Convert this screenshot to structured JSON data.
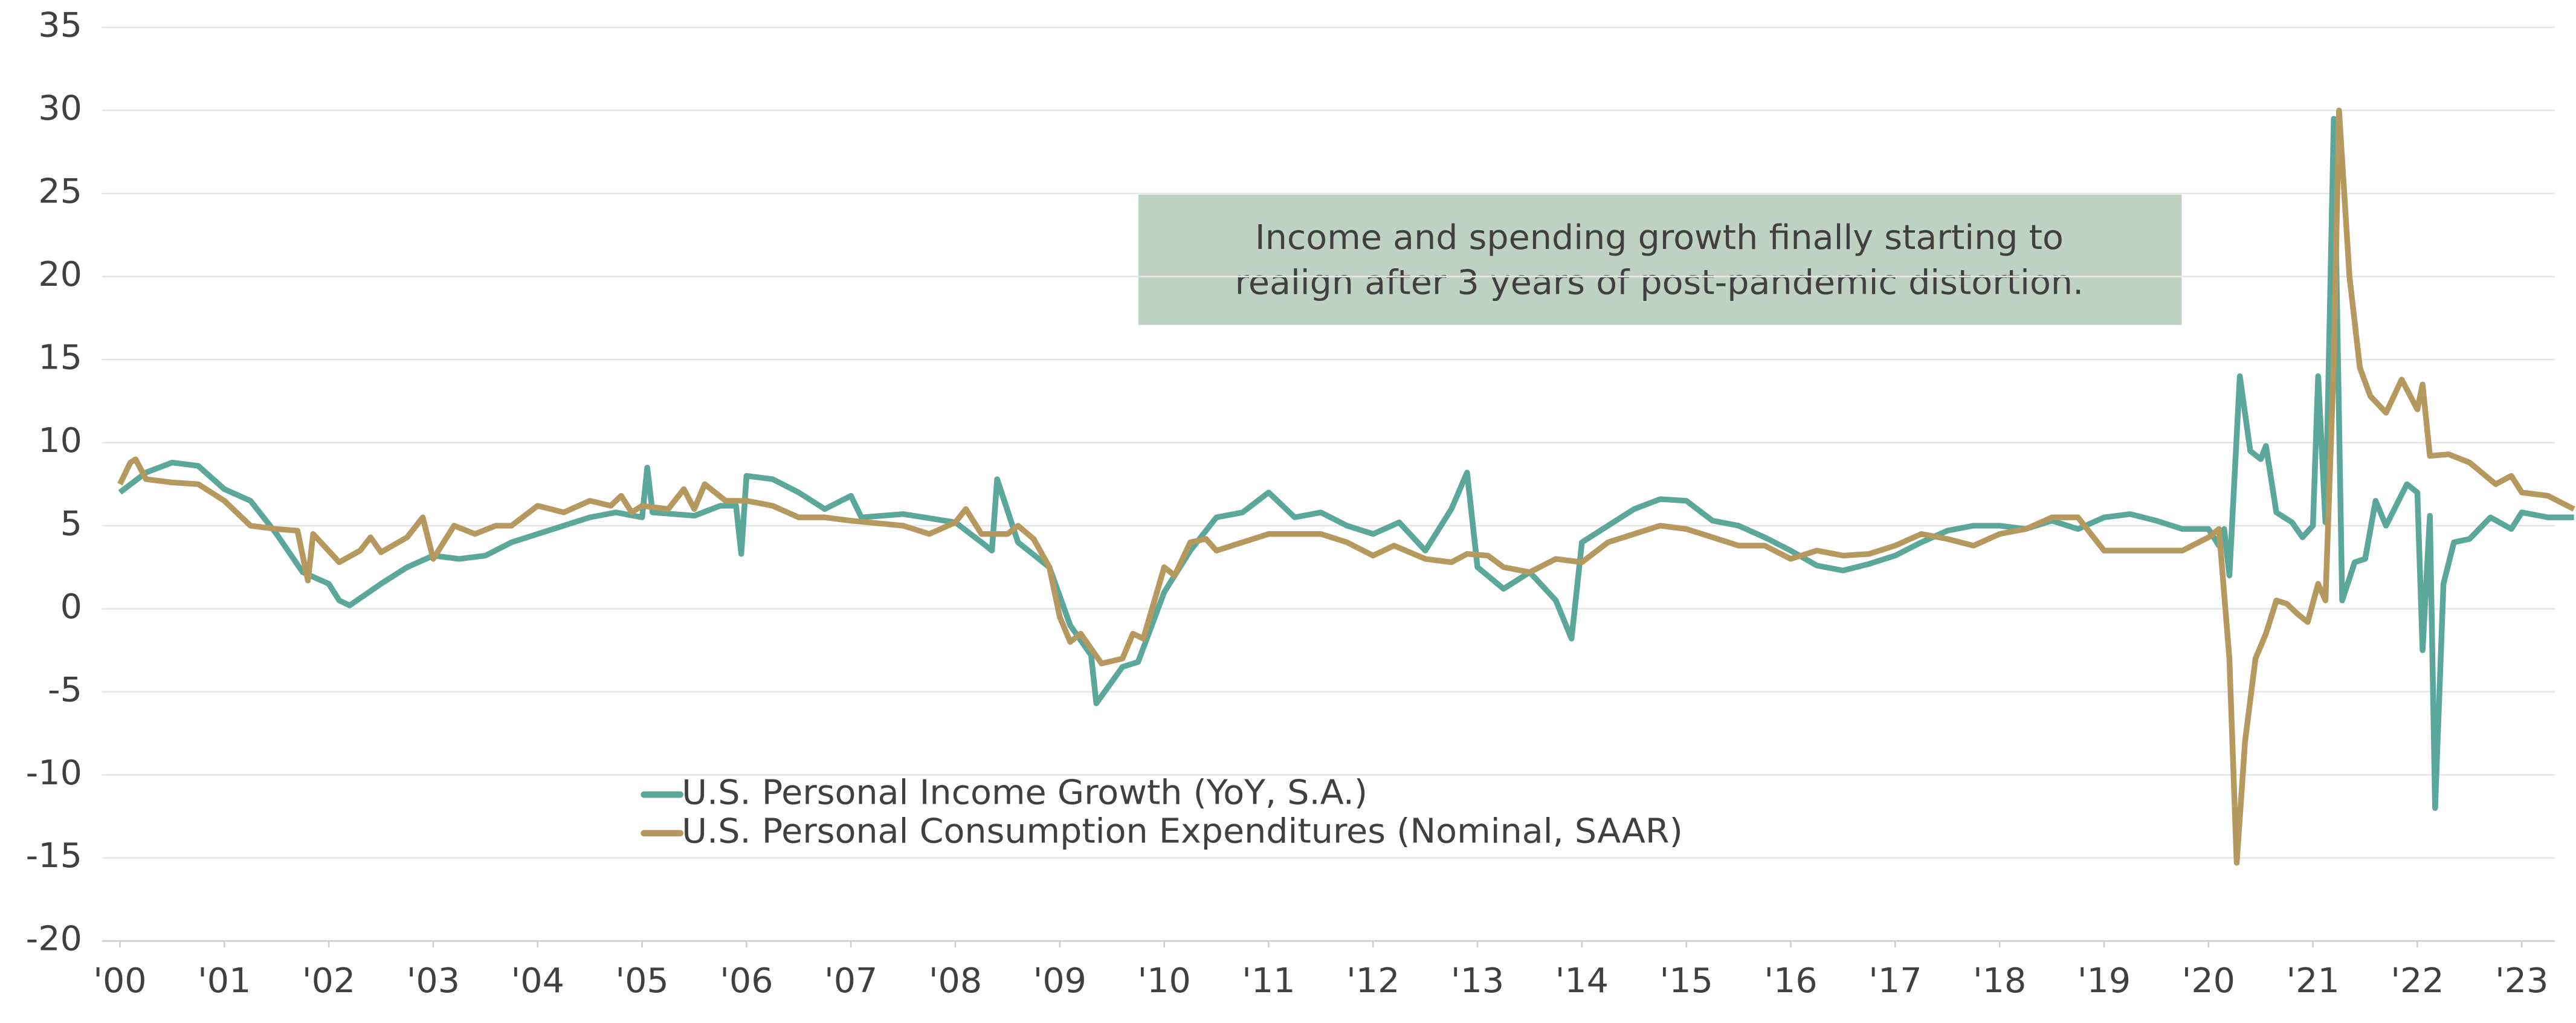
{
  "chart_data": {
    "type": "line",
    "annotation": [
      "Income and spending growth finally starting to",
      "realign after 3 years of post-pandemic distortion."
    ],
    "xlim": [
      2000,
      2023.5
    ],
    "xticks": [
      {
        "value": 2000,
        "label": "'00"
      },
      {
        "value": 2001,
        "label": "'01"
      },
      {
        "value": 2002,
        "label": "'02"
      },
      {
        "value": 2003,
        "label": "'03"
      },
      {
        "value": 2004,
        "label": "'04"
      },
      {
        "value": 2005,
        "label": "'05"
      },
      {
        "value": 2006,
        "label": "'06"
      },
      {
        "value": 2007,
        "label": "'07"
      },
      {
        "value": 2008,
        "label": "'08"
      },
      {
        "value": 2009,
        "label": "'09"
      },
      {
        "value": 2010,
        "label": "'10"
      },
      {
        "value": 2011,
        "label": "'11"
      },
      {
        "value": 2012,
        "label": "'12"
      },
      {
        "value": 2013,
        "label": "'13"
      },
      {
        "value": 2014,
        "label": "'14"
      },
      {
        "value": 2015,
        "label": "'15"
      },
      {
        "value": 2016,
        "label": "'16"
      },
      {
        "value": 2017,
        "label": "'17"
      },
      {
        "value": 2018,
        "label": "'18"
      },
      {
        "value": 2019,
        "label": "'19"
      },
      {
        "value": 2020,
        "label": "'20"
      },
      {
        "value": 2021,
        "label": "'21"
      },
      {
        "value": 2022,
        "label": "'22"
      },
      {
        "value": 2023,
        "label": "'23"
      }
    ],
    "ylim": [
      -20,
      35
    ],
    "yticks": [
      -20,
      -15,
      -10,
      -5,
      0,
      5,
      10,
      15,
      20,
      25,
      30,
      35
    ],
    "grid": true,
    "series": [
      {
        "name": "U.S. Personal Income Growth (YoY, S.A.)",
        "color": "#5ba89b",
        "x": [
          2000.0,
          2000.25,
          2000.5,
          2000.75,
          2001.0,
          2001.25,
          2001.5,
          2001.75,
          2002.0,
          2002.1,
          2002.2,
          2002.5,
          2002.75,
          2003.0,
          2003.25,
          2003.5,
          2003.75,
          2004.0,
          2004.25,
          2004.5,
          2004.75,
          2005.0,
          2005.05,
          2005.1,
          2005.5,
          2005.75,
          2005.9,
          2005.95,
          2006.0,
          2006.25,
          2006.5,
          2006.75,
          2007.0,
          2007.1,
          2007.5,
          2008.0,
          2008.25,
          2008.35,
          2008.4,
          2008.6,
          2008.9,
          2009.1,
          2009.3,
          2009.35,
          2009.6,
          2009.75,
          2010.0,
          2010.25,
          2010.5,
          2010.75,
          2011.0,
          2011.25,
          2011.5,
          2011.75,
          2012.0,
          2012.25,
          2012.5,
          2012.75,
          2012.9,
          2013.0,
          2013.25,
          2013.5,
          2013.75,
          2013.9,
          2014.0,
          2014.25,
          2014.5,
          2014.75,
          2015.0,
          2015.25,
          2015.5,
          2015.75,
          2016.0,
          2016.25,
          2016.5,
          2016.75,
          2017.0,
          2017.25,
          2017.5,
          2017.75,
          2018.0,
          2018.25,
          2018.5,
          2018.75,
          2019.0,
          2019.25,
          2019.5,
          2019.75,
          2020.0,
          2020.1,
          2020.15,
          2020.2,
          2020.3,
          2020.4,
          2020.5,
          2020.55,
          2020.65,
          2020.8,
          2020.9,
          2021.0,
          2021.05,
          2021.12,
          2021.2,
          2021.28,
          2021.4,
          2021.5,
          2021.6,
          2021.7,
          2021.9,
          2022.0,
          2022.05,
          2022.12,
          2022.17,
          2022.25,
          2022.35,
          2022.5,
          2022.7,
          2022.9,
          2023.0,
          2023.25,
          2023.5
        ],
        "values": [
          7,
          8.2,
          8.8,
          8.6,
          7.2,
          6.5,
          4.5,
          2.2,
          1.5,
          0.5,
          0.2,
          1.5,
          2.5,
          3.2,
          3,
          3.2,
          4,
          4.5,
          5,
          5.5,
          5.8,
          5.5,
          8.5,
          5.8,
          5.6,
          6.2,
          6.2,
          3.3,
          8,
          7.8,
          7,
          6,
          6.8,
          5.5,
          5.7,
          5.2,
          4,
          3.5,
          7.8,
          4,
          2.5,
          -1,
          -2.8,
          -5.7,
          -3.5,
          -3.2,
          1,
          3.5,
          5.5,
          5.8,
          7,
          5.5,
          5.8,
          5,
          4.5,
          5.2,
          3.5,
          6,
          8.2,
          2.5,
          1.2,
          2.2,
          0.5,
          -1.8,
          4,
          5,
          6,
          6.6,
          6.5,
          5.3,
          5,
          4.3,
          3.5,
          2.6,
          2.3,
          2.7,
          3.2,
          4,
          4.7,
          5,
          5,
          4.8,
          5.3,
          4.8,
          5.5,
          5.7,
          5.3,
          4.8,
          4.8,
          3.8,
          4.8,
          2,
          14,
          9.5,
          9,
          9.8,
          5.8,
          5.2,
          4.3,
          5,
          14,
          5.2,
          29.5,
          0.5,
          2.8,
          3,
          6.5,
          5,
          7.5,
          7,
          -2.5,
          5.6,
          -12,
          1.5,
          4,
          4.2,
          5.5,
          4.8,
          5.8,
          5.5,
          5.5
        ]
      },
      {
        "name": "U.S. Personal Consumption Expenditures (Nominal, SAAR)",
        "color": "#b5995e",
        "x": [
          2000.0,
          2000.1,
          2000.15,
          2000.25,
          2000.5,
          2000.75,
          2001.0,
          2001.25,
          2001.5,
          2001.7,
          2001.8,
          2001.85,
          2002.1,
          2002.3,
          2002.4,
          2002.5,
          2002.75,
          2002.9,
          2003.0,
          2003.2,
          2003.4,
          2003.6,
          2003.75,
          2004.0,
          2004.25,
          2004.5,
          2004.7,
          2004.8,
          2004.9,
          2005.0,
          2005.25,
          2005.4,
          2005.5,
          2005.6,
          2005.8,
          2006.0,
          2006.25,
          2006.5,
          2006.75,
          2007.0,
          2007.5,
          2007.75,
          2008.0,
          2008.1,
          2008.25,
          2008.5,
          2008.6,
          2008.75,
          2008.9,
          2009.0,
          2009.1,
          2009.2,
          2009.4,
          2009.6,
          2009.7,
          2009.8,
          2010.0,
          2010.1,
          2010.25,
          2010.4,
          2010.5,
          2010.75,
          2011.0,
          2011.25,
          2011.5,
          2011.75,
          2012.0,
          2012.2,
          2012.5,
          2012.75,
          2012.9,
          2013.1,
          2013.25,
          2013.5,
          2013.75,
          2014.0,
          2014.25,
          2014.5,
          2014.75,
          2015.0,
          2015.25,
          2015.5,
          2015.75,
          2016.0,
          2016.25,
          2016.5,
          2016.75,
          2017.0,
          2017.25,
          2017.5,
          2017.75,
          2018.0,
          2018.25,
          2018.5,
          2018.75,
          2019.0,
          2019.25,
          2019.5,
          2019.75,
          2020.0,
          2020.1,
          2020.2,
          2020.27,
          2020.35,
          2020.45,
          2020.55,
          2020.65,
          2020.75,
          2020.85,
          2020.95,
          2021.05,
          2021.12,
          2021.2,
          2021.25,
          2021.35,
          2021.45,
          2021.55,
          2021.7,
          2021.85,
          2022.0,
          2022.05,
          2022.12,
          2022.3,
          2022.5,
          2022.75,
          2022.9,
          2023.0,
          2023.25,
          2023.5
        ],
        "values": [
          7.5,
          8.8,
          9,
          7.8,
          7.6,
          7.5,
          6.5,
          5,
          4.8,
          4.7,
          1.7,
          4.5,
          2.8,
          3.5,
          4.3,
          3.4,
          4.3,
          5.5,
          3,
          5,
          4.5,
          5,
          5,
          6.2,
          5.8,
          6.5,
          6.2,
          6.8,
          5.8,
          6.2,
          6,
          7.2,
          6,
          7.5,
          6.5,
          6.5,
          6.2,
          5.5,
          5.5,
          5.3,
          5,
          4.5,
          5.2,
          6,
          4.5,
          4.5,
          5,
          4.2,
          2.5,
          -0.5,
          -2,
          -1.5,
          -3.3,
          -3,
          -1.5,
          -1.8,
          2.5,
          2,
          4,
          4.2,
          3.5,
          4,
          4.5,
          4.5,
          4.5,
          4,
          3.2,
          3.8,
          3,
          2.8,
          3.3,
          3.2,
          2.5,
          2.2,
          3,
          2.8,
          4,
          4.5,
          5,
          4.8,
          4.3,
          3.8,
          3.8,
          3,
          3.5,
          3.2,
          3.3,
          3.8,
          4.5,
          4.2,
          3.8,
          4.5,
          4.8,
          5.5,
          5.5,
          3.5,
          3.5,
          3.5,
          3.5,
          4.3,
          4.8,
          -3,
          -15.3,
          -8,
          -3,
          -1.5,
          0.5,
          0.3,
          -0.3,
          -0.8,
          1.5,
          0.5,
          15,
          30,
          20,
          14.5,
          12.8,
          11.8,
          13.8,
          12,
          13.5,
          9.2,
          9.3,
          8.8,
          7.5,
          8,
          7,
          6.8,
          6
        ]
      }
    ]
  }
}
